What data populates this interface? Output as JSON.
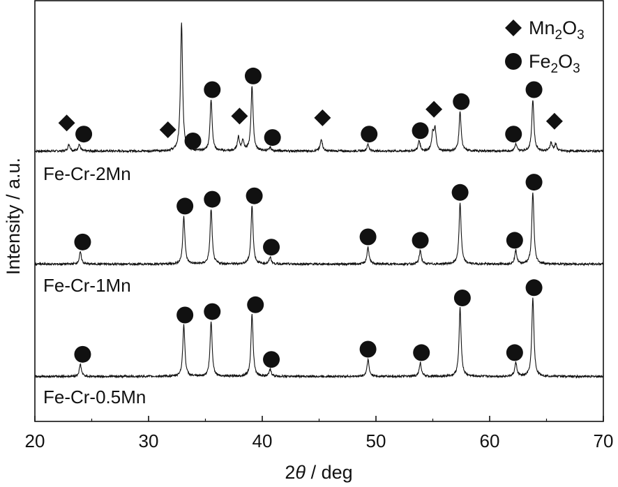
{
  "chart_data": {
    "type": "line",
    "title": "",
    "xlabel_pre": "2",
    "xlabel_theta": "θ",
    "xlabel_post": " / deg",
    "ylabel": "Intensity / a.u.",
    "xlim": [
      20,
      70
    ],
    "xticks": [
      20,
      30,
      40,
      50,
      60,
      70
    ],
    "grid": false,
    "legend": {
      "placement": "top-right",
      "entries": [
        {
          "marker": "diamond",
          "base": "Mn",
          "sub1": "2",
          "mid": "O",
          "sub2": "3"
        },
        {
          "marker": "circle",
          "base": "Fe",
          "sub1": "2",
          "mid": "O",
          "sub2": "3"
        }
      ]
    },
    "series": [
      {
        "name": "Fe-Cr-2Mn",
        "peaks": [
          [
            23.0,
            0.04
          ],
          [
            23.9,
            0.04
          ],
          [
            32.9,
            0.75
          ],
          [
            35.5,
            0.3
          ],
          [
            37.9,
            0.08
          ],
          [
            38.3,
            0.06
          ],
          [
            39.1,
            0.38
          ],
          [
            40.7,
            0.02
          ],
          [
            45.2,
            0.07
          ],
          [
            49.3,
            0.04
          ],
          [
            53.8,
            0.06
          ],
          [
            55.0,
            0.1
          ],
          [
            55.2,
            0.12
          ],
          [
            57.4,
            0.23
          ],
          [
            62.3,
            0.04
          ],
          [
            63.8,
            0.3
          ],
          [
            65.4,
            0.05
          ],
          [
            65.8,
            0.04
          ]
        ],
        "diamonds": [
          22.8,
          31.7,
          38.0,
          45.3,
          55.1,
          65.7
        ],
        "circles": [
          24.3,
          33.9,
          35.6,
          39.2,
          40.9,
          49.4,
          53.9,
          57.5,
          62.1,
          63.9
        ]
      },
      {
        "name": "Fe-Cr-1Mn",
        "peaks": [
          [
            24.0,
            0.07
          ],
          [
            33.1,
            0.28
          ],
          [
            35.5,
            0.32
          ],
          [
            39.1,
            0.34
          ],
          [
            40.7,
            0.04
          ],
          [
            49.3,
            0.1
          ],
          [
            53.9,
            0.08
          ],
          [
            57.4,
            0.36
          ],
          [
            62.3,
            0.08
          ],
          [
            63.8,
            0.42
          ]
        ],
        "diamonds": [],
        "circles": [
          24.2,
          33.2,
          35.6,
          39.3,
          40.8,
          49.3,
          53.9,
          57.4,
          62.2,
          63.9
        ]
      },
      {
        "name": "Fe-Cr-0.5Mn",
        "peaks": [
          [
            24.0,
            0.07
          ],
          [
            33.1,
            0.3
          ],
          [
            35.5,
            0.32
          ],
          [
            39.1,
            0.36
          ],
          [
            40.7,
            0.04
          ],
          [
            49.3,
            0.1
          ],
          [
            53.9,
            0.08
          ],
          [
            57.4,
            0.4
          ],
          [
            62.3,
            0.08
          ],
          [
            63.8,
            0.46
          ]
        ],
        "diamonds": [],
        "circles": [
          24.2,
          33.2,
          35.6,
          39.4,
          40.8,
          49.3,
          54.0,
          57.6,
          62.2,
          63.9
        ]
      }
    ]
  }
}
